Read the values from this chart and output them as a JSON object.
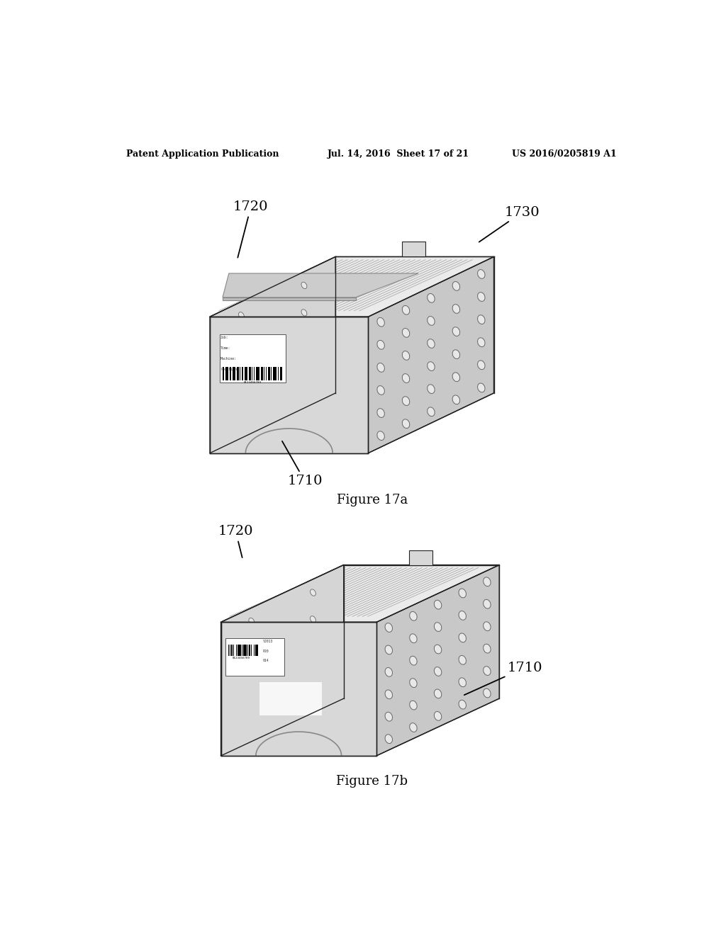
{
  "bg_color": "#ffffff",
  "header_left": "Patent Application Publication",
  "header_mid": "Jul. 14, 2016  Sheet 17 of 21",
  "header_right": "US 2016/0205819 A1",
  "fig17a_caption": "Figure 17a",
  "fig17b_caption": "Figure 17b",
  "label_1710a": "1710",
  "label_1720a": "1720",
  "label_1730a": "1730",
  "label_1720b": "1720",
  "label_1710b": "1710",
  "front_color": "#d8d8d8",
  "right_color": "#c8c8c8",
  "left_color": "#e0e0e0",
  "top_color": "#ebebeb",
  "interior_color": "#c0c0c0",
  "line_color": "#222222",
  "hole_face": "#e8e8e8",
  "hole_edge": "#666666",
  "ridge_color": "#aaaaaa",
  "label_bg": "#ffffff"
}
